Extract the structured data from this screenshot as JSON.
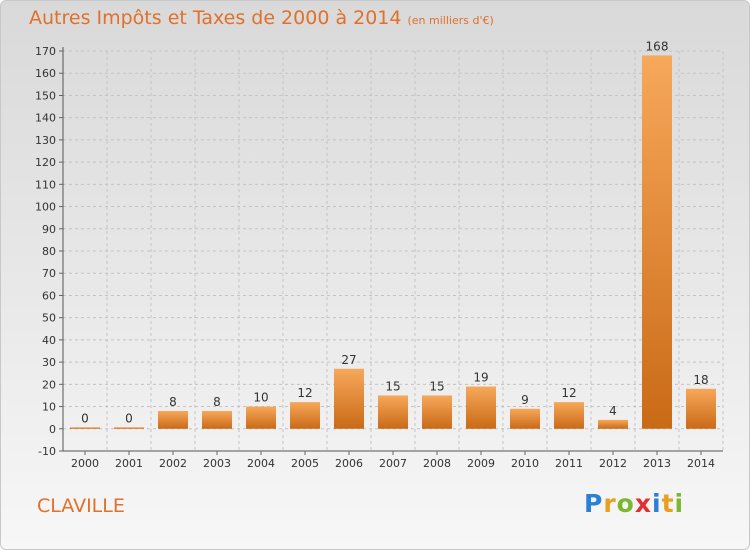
{
  "title": "Autres Impôts et Taxes de 2000 à 2014",
  "unit": "(en milliers d'€)",
  "commune": "CLAVILLE",
  "logo": {
    "text": "Proxiti",
    "letters": [
      {
        "char": "P",
        "color": "#2a7fd6"
      },
      {
        "char": "r",
        "color": "#e8a020"
      },
      {
        "char": "o",
        "color": "#7cb82f"
      },
      {
        "char": "x",
        "color": "#e03030"
      },
      {
        "char": "i",
        "color": "#2a7fd6"
      },
      {
        "char": "t",
        "color": "#e8a020"
      },
      {
        "char": "i",
        "color": "#7cb82f"
      }
    ]
  },
  "colors": {
    "bar_top": "#f7a85a",
    "bar_bottom": "#c96a16",
    "text": "#e0702a"
  },
  "chart_data": {
    "type": "bar",
    "title": "Autres Impôts et Taxes de 2000 à 2014",
    "categories": [
      "2000",
      "2001",
      "2002",
      "2003",
      "2004",
      "2005",
      "2006",
      "2007",
      "2008",
      "2009",
      "2010",
      "2011",
      "2012",
      "2013",
      "2014"
    ],
    "values": [
      0,
      0,
      8,
      8,
      10,
      12,
      27,
      15,
      15,
      19,
      9,
      12,
      4,
      168,
      18
    ],
    "ylim": [
      -10,
      170
    ],
    "yticks": [
      -10,
      0,
      10,
      20,
      30,
      40,
      50,
      60,
      70,
      80,
      90,
      100,
      110,
      120,
      130,
      140,
      150,
      160,
      170
    ],
    "grid": true,
    "xlabel": "",
    "ylabel": ""
  }
}
